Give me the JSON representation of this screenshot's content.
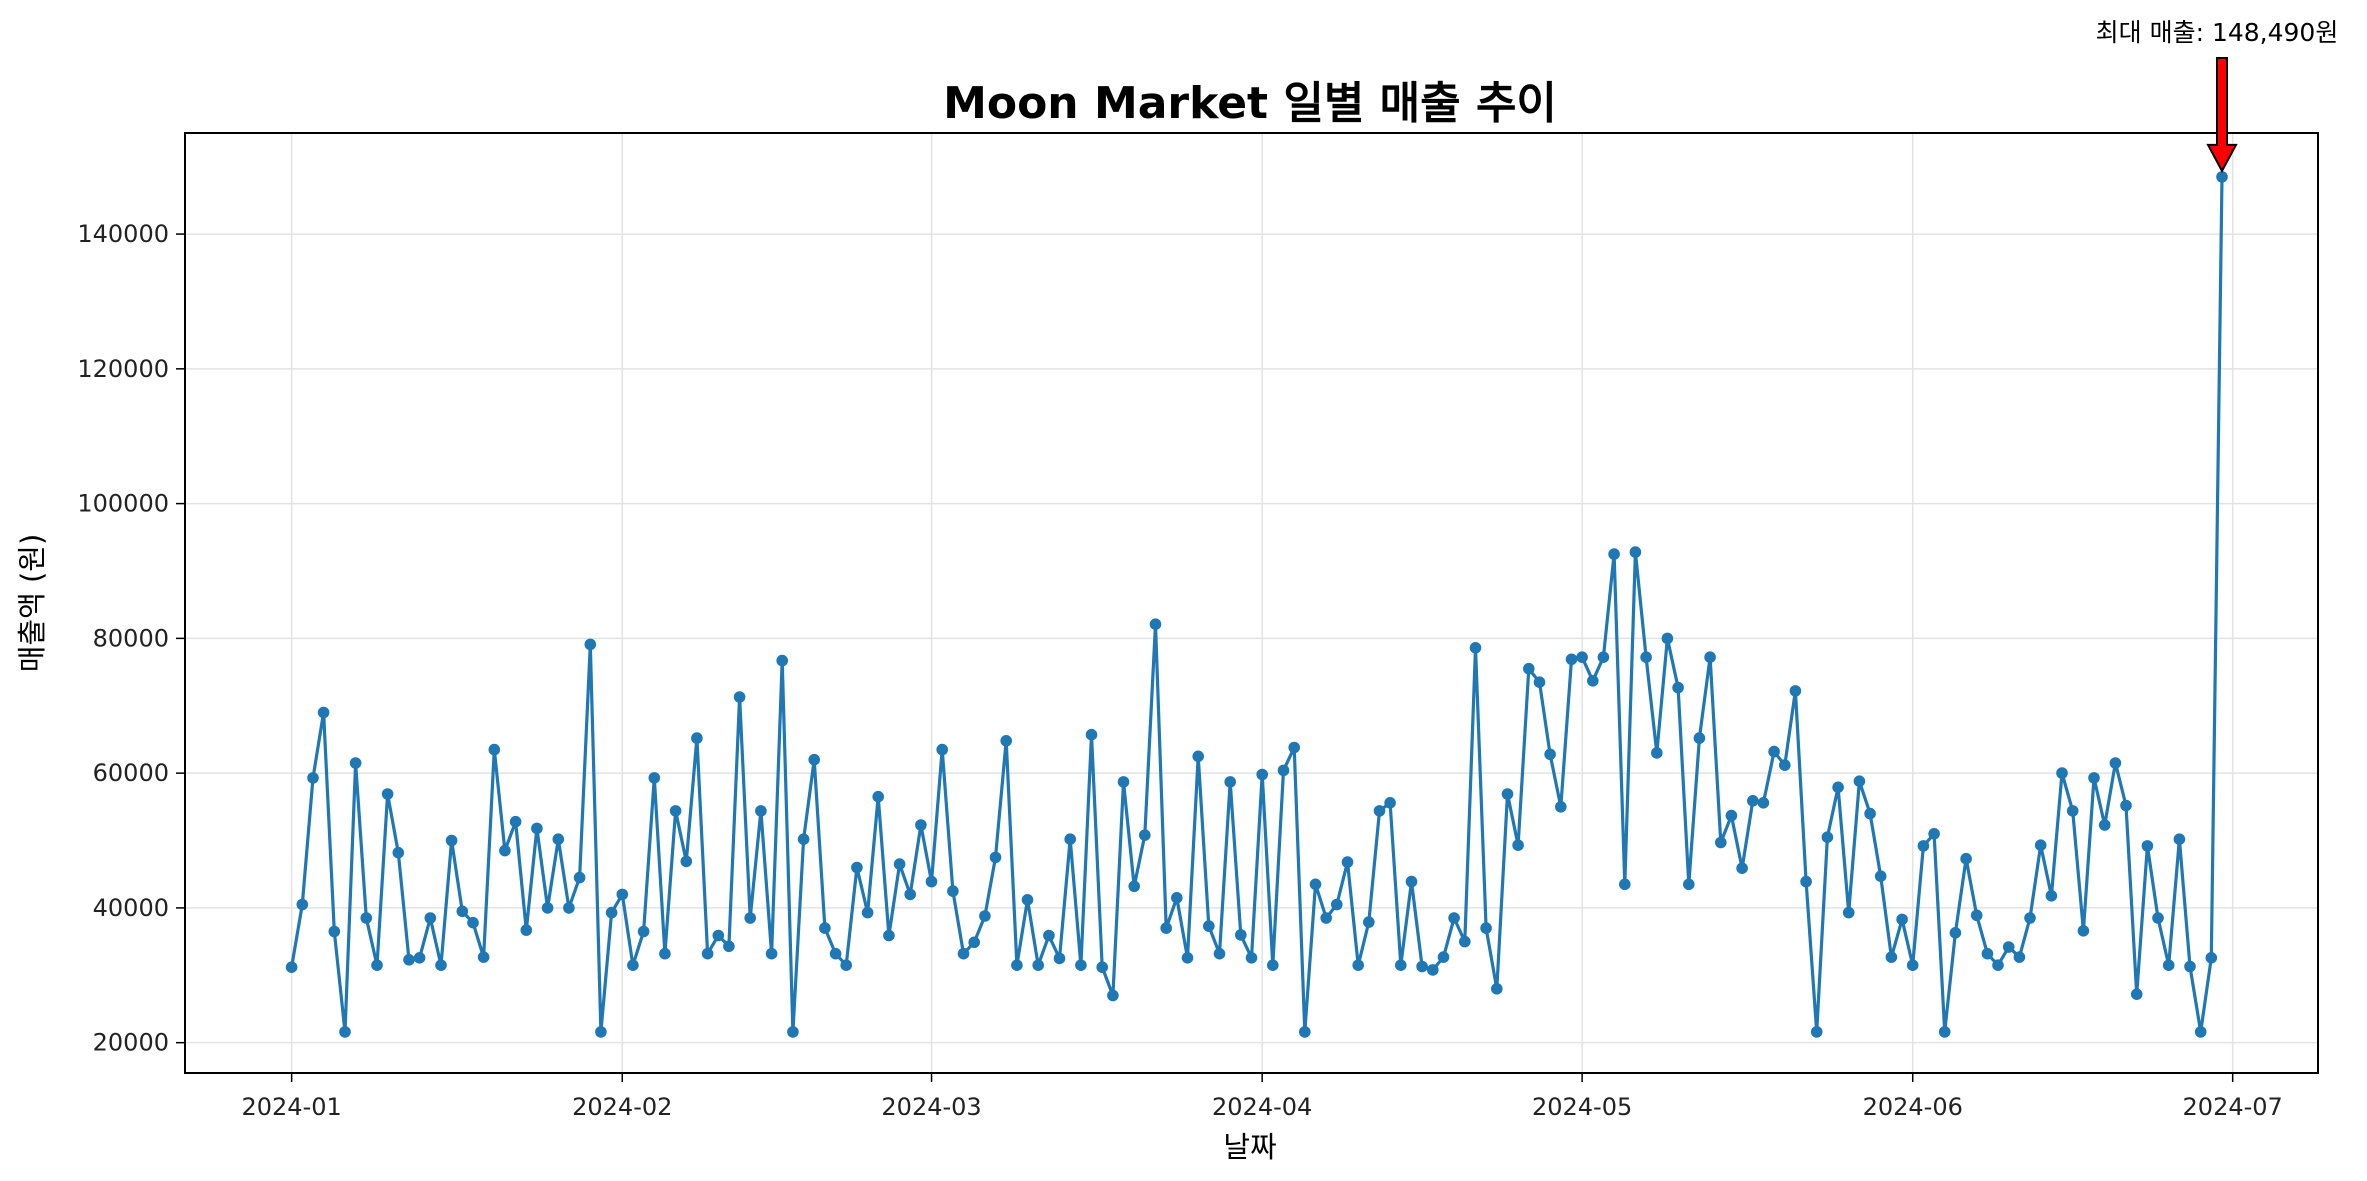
{
  "chart_data": {
    "type": "line",
    "title": "Moon Market 일별 매출 추이",
    "xlabel": "날짜",
    "ylabel": "매출액 (원)",
    "x_ticks": [
      "2024-01",
      "2024-02",
      "2024-03",
      "2024-04",
      "2024-05",
      "2024-06",
      "2024-07"
    ],
    "y_ticks": [
      "20000",
      "40000",
      "60000",
      "80000",
      "100000",
      "120000",
      "140000"
    ],
    "ylim": [
      15500,
      155000
    ],
    "xlim": [
      "2023-12-22",
      "2024-07-09"
    ],
    "grid": true,
    "legend": "none",
    "line_color": "#1f77b4",
    "marker": "circle",
    "annotation": {
      "text": "최대 매출: 148,490원",
      "x": "2024-06-30",
      "y": 148490,
      "arrow_color": "#ff0000"
    },
    "series": [
      {
        "x_start": "2024-01-01",
        "frequency": "daily",
        "values": [
          31200,
          40500,
          59300,
          69000,
          36500,
          21600,
          61500,
          38500,
          31500,
          56900,
          48200,
          32300,
          32600,
          38500,
          31500,
          50000,
          39500,
          37800,
          32700,
          63500,
          48500,
          52800,
          36700,
          51800,
          40000,
          50200,
          40000,
          44500,
          79100,
          21600,
          39300,
          42000,
          31500,
          36500,
          59300,
          33200,
          54400,
          46900,
          65200,
          33200,
          35900,
          34300,
          71300,
          38500,
          54400,
          33200,
          76700,
          21600,
          50200,
          62000,
          37000,
          33200,
          31500,
          46000,
          39300,
          56500,
          35900,
          46500,
          42000,
          52300,
          43900,
          63500,
          42500,
          33200,
          34900,
          38800,
          47500,
          64800,
          31500,
          41200,
          31500,
          35900,
          32500,
          50200,
          31500,
          65700,
          31200,
          27000,
          58700,
          43200,
          50800,
          82100,
          37000,
          41500,
          32600,
          62500,
          37300,
          33200,
          58700,
          36000,
          32600,
          59800,
          31500,
          60400,
          63800,
          21600,
          43500,
          38500,
          40500,
          46800,
          31500,
          37900,
          54400,
          55600,
          31500,
          43900,
          31300,
          30800,
          32700,
          38500,
          35000,
          78600,
          37000,
          28000,
          56900,
          49300,
          75500,
          73500,
          62800,
          55000,
          76900,
          77200,
          73700,
          77200,
          92500,
          43500,
          92800,
          77200,
          63000,
          80000,
          72700,
          43500,
          65200,
          77200,
          49700,
          53700,
          45900,
          55900,
          55600,
          63200,
          61200,
          72200,
          43900,
          21600,
          50500,
          57900,
          39300,
          58800,
          54000,
          44700,
          32700,
          38300,
          31500,
          49200,
          51000,
          21600,
          36300,
          47300,
          38900,
          33200,
          31500,
          34200,
          32700,
          38500,
          49300,
          41800,
          60000,
          54400,
          36600,
          59300,
          52300,
          61500,
          55200,
          27200,
          49200,
          38500,
          31500,
          50200,
          31300,
          21600,
          32600,
          148490
        ]
      }
    ]
  }
}
